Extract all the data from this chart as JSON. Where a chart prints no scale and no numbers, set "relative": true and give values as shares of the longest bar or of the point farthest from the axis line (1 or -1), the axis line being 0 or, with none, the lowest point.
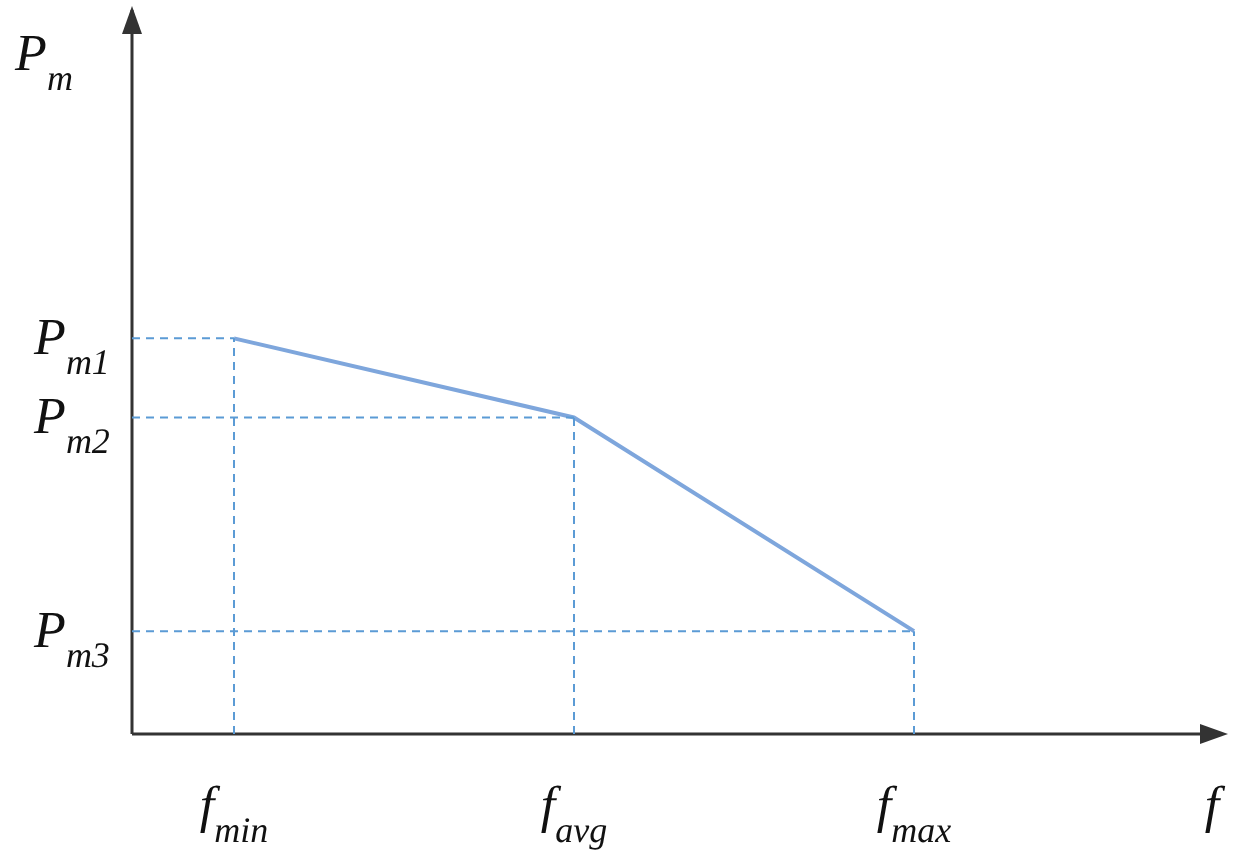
{
  "chart_data": {
    "type": "line",
    "xlabel": "f",
    "ylabel": "P$_{m}$",
    "categories": [
      "f$_{min}$",
      "f$_{avg}$",
      "f$_{max}$"
    ],
    "relative": true,
    "series": [
      {
        "color": "#7ea6dc",
        "values": [
          1,
          0.8,
          0.26
        ]
      }
    ],
    "annotations": [
      {
        "text": "P$_{m1}$",
        "x": "f$_{min}$",
        "y": 1
      },
      {
        "text": "P$_{m2}$",
        "x": "f$_{avg}$",
        "y": 0.8
      },
      {
        "text": "P$_{m3}$",
        "x": "f$_{max}$",
        "y": 0.26
      }
    ],
    "grid": true,
    "marker": "none",
    "line_style": "solid"
  }
}
